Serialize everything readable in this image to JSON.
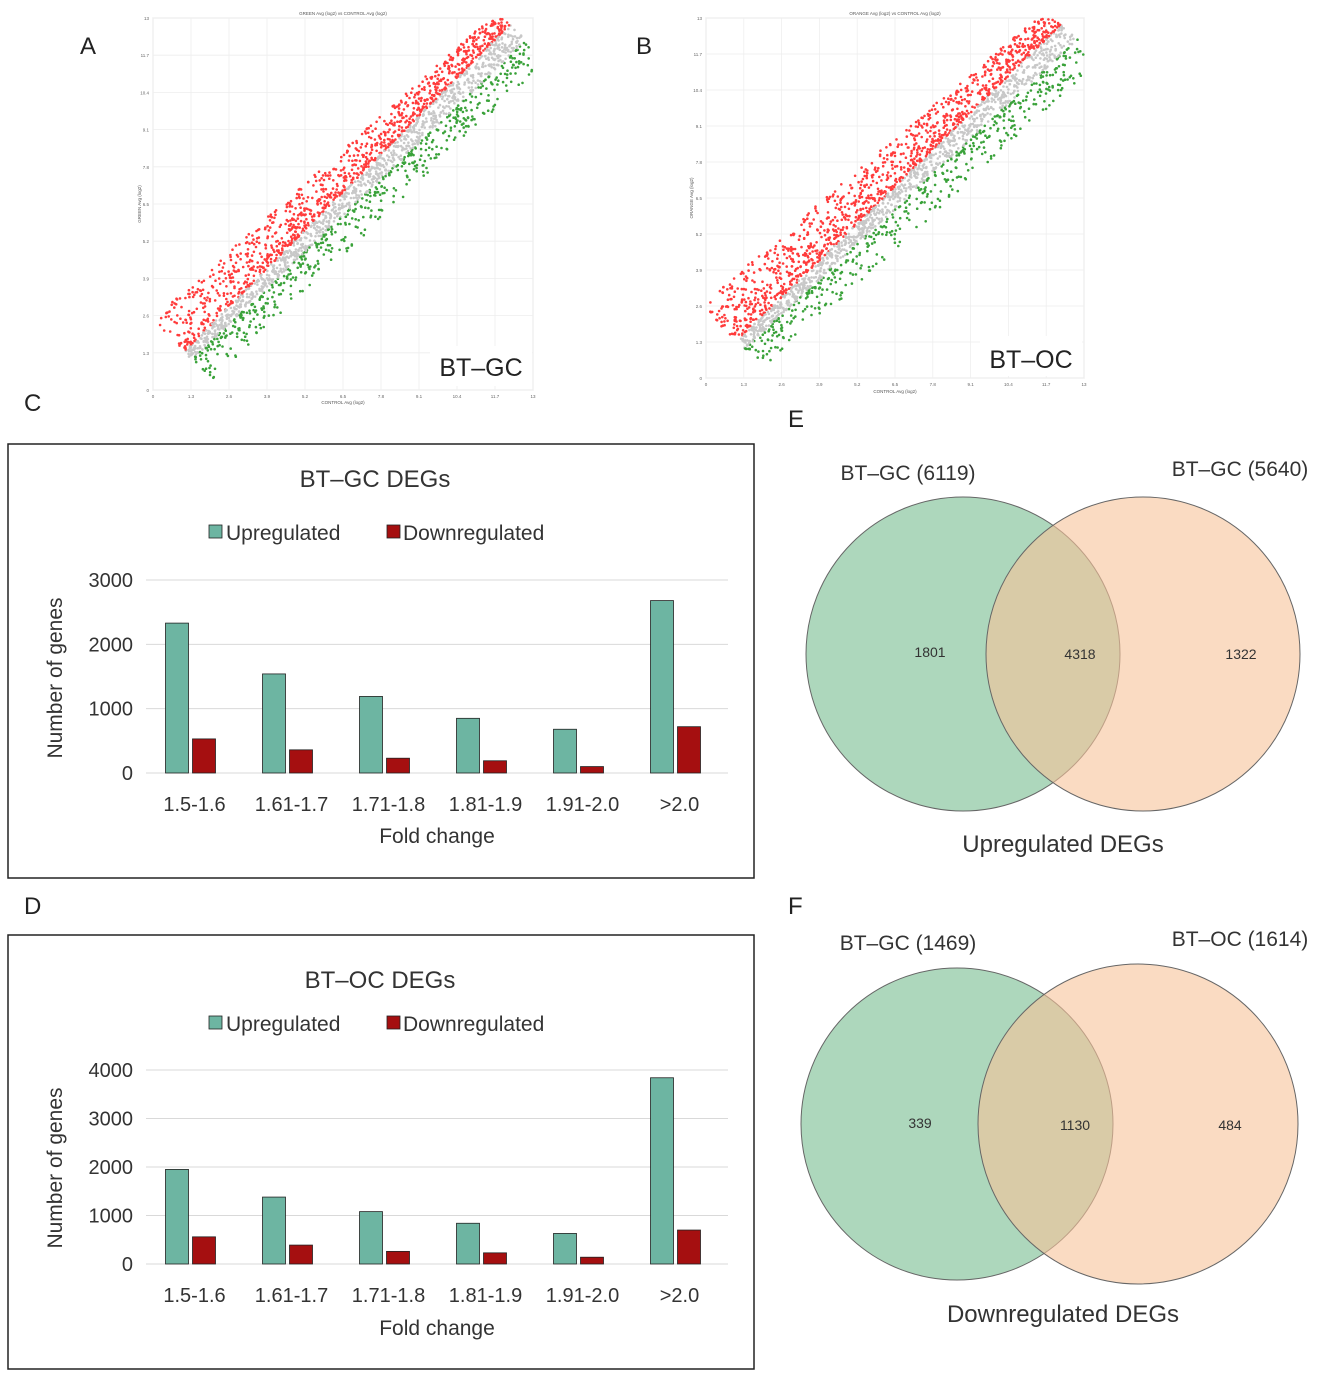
{
  "panel_labels": {
    "A": "A",
    "B": "B",
    "C": "C",
    "D": "D",
    "E": "E",
    "F": "F"
  },
  "colors": {
    "up": "#6db5a2",
    "down": "#a50f10",
    "scatter_up": "#ff3b3b",
    "scatter_down": "#3aa23a",
    "scatter_mid": "#c8c8c8",
    "venn_left": "#9fd0b0",
    "venn_right": "#f6c39a"
  },
  "chart_data": [
    {
      "id": "A",
      "type": "scatter",
      "title": "GREEN Avg (log2) vs CONTROL Avg (log2)",
      "xlabel": "CONTROL Avg (log2)",
      "ylabel": "GREEN Avg (log2)",
      "xticks": [
        "0",
        "1.3",
        "2.6",
        "3.9",
        "5.2",
        "6.5",
        "7.8",
        "9.1",
        "10.4",
        "11.7",
        "13"
      ],
      "yticks": [
        "0",
        "1.3",
        "2.6",
        "3.9",
        "5.2",
        "6.5",
        "7.8",
        "9.1",
        "10.4",
        "11.7",
        "13"
      ],
      "xlim": [
        0,
        13
      ],
      "ylim": [
        0,
        13
      ],
      "label": "BT–GC",
      "cloud": {
        "start": 1.2,
        "end": 12.5,
        "up_spread": 2.2,
        "down_spread": 1.4
      }
    },
    {
      "id": "B",
      "type": "scatter",
      "title": "ORANGE Avg (log2) vs CONTROL Avg (log2)",
      "xlabel": "CONTROL Avg (log2)",
      "ylabel": "ORANGE Avg (log2)",
      "xticks": [
        "0",
        "1.3",
        "2.6",
        "3.9",
        "5.2",
        "6.5",
        "7.8",
        "9.1",
        "10.4",
        "11.7",
        "13"
      ],
      "yticks": [
        "0",
        "1.3",
        "2.6",
        "3.9",
        "5.2",
        "6.5",
        "7.8",
        "9.1",
        "10.4",
        "11.7",
        "13"
      ],
      "xlim": [
        0,
        13
      ],
      "ylim": [
        0,
        13
      ],
      "label": "BT–OC",
      "cloud": {
        "start": 1.2,
        "end": 12.5,
        "up_spread": 2.6,
        "down_spread": 1.5
      }
    },
    {
      "id": "C",
      "type": "bar",
      "title": "BT–GC DEGs",
      "xlabel": "Fold change",
      "ylabel": "Number  of genes",
      "categories": [
        "1.5-1.6",
        "1.61-1.7",
        "1.71-1.8",
        "1.81-1.9",
        "1.91-2.0",
        ">2.0"
      ],
      "series": [
        {
          "name": "Upregulated",
          "values": [
            2330,
            1540,
            1190,
            850,
            680,
            2680
          ]
        },
        {
          "name": "Downregulated",
          "values": [
            530,
            360,
            230,
            190,
            100,
            720
          ]
        }
      ],
      "yticks": [
        "0",
        "1000",
        "2000",
        "3000"
      ],
      "ylim": [
        0,
        3000
      ]
    },
    {
      "id": "D",
      "type": "bar",
      "title": "BT–OC DEGs",
      "xlabel": "Fold change",
      "ylabel": "Number  of genes",
      "categories": [
        "1.5-1.6",
        "1.61-1.7",
        "1.71-1.8",
        "1.81-1.9",
        "1.91-2.0",
        ">2.0"
      ],
      "series": [
        {
          "name": "Upregulated",
          "values": [
            1950,
            1380,
            1080,
            840,
            630,
            3840
          ]
        },
        {
          "name": "Downregulated",
          "values": [
            560,
            390,
            260,
            230,
            140,
            700
          ]
        }
      ],
      "yticks": [
        "0",
        "1000",
        "2000",
        "3000",
        "4000"
      ],
      "ylim": [
        0,
        4000
      ]
    },
    {
      "id": "E",
      "type": "venn",
      "title": "Upregulated DEGs",
      "left_set": "BT–GC (6119)",
      "right_set": "BT–GC (5640)",
      "left_only": "1801",
      "both": "4318",
      "right_only": "1322"
    },
    {
      "id": "F",
      "type": "venn",
      "title": "Downregulated DEGs",
      "left_set": "BT–GC (1469)",
      "right_set": "BT–OC (1614)",
      "left_only": "339",
      "both": "1130",
      "right_only": "484"
    }
  ]
}
